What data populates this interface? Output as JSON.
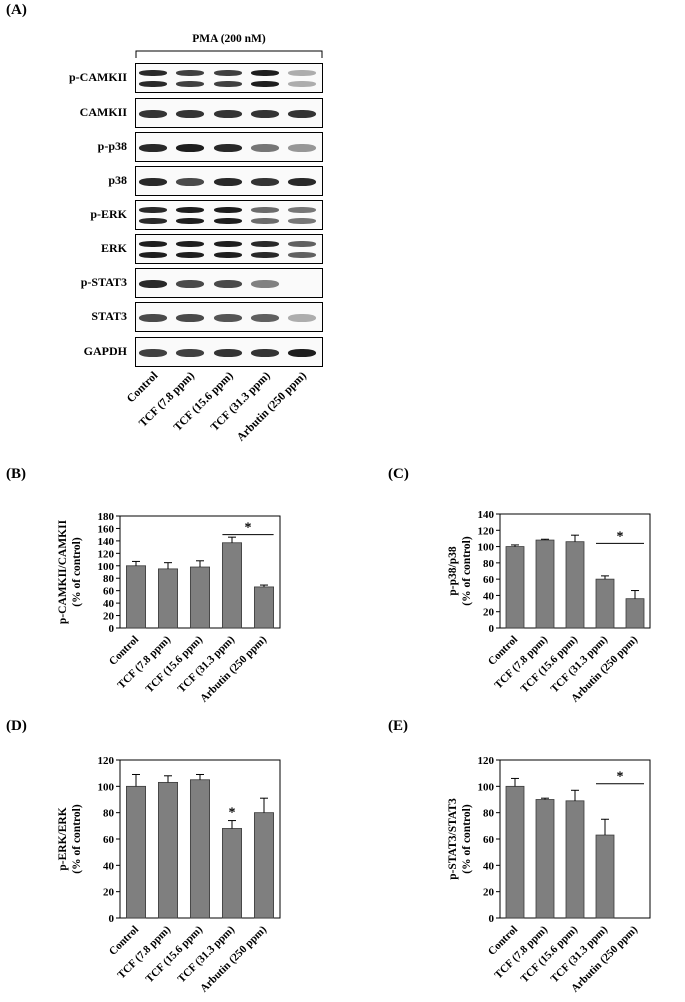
{
  "panels": {
    "A": "(A)",
    "B": "(B)",
    "C": "(C)",
    "D": "(D)",
    "E": "(E)"
  },
  "blot": {
    "treatment_label": "PMA (200 nM)",
    "rows": [
      {
        "label": "p-CAMKII",
        "double": true,
        "intensity": [
          0.95,
          0.85,
          0.85,
          1.0,
          0.35
        ]
      },
      {
        "label": "CAMKII",
        "double": false,
        "intensity": [
          0.9,
          0.9,
          0.9,
          0.9,
          0.9
        ]
      },
      {
        "label": "p-p38",
        "double": false,
        "intensity": [
          0.95,
          1.0,
          0.95,
          0.6,
          0.45
        ]
      },
      {
        "label": "p38",
        "double": false,
        "intensity": [
          0.95,
          0.8,
          0.95,
          0.9,
          0.95
        ]
      },
      {
        "label": "p-ERK",
        "double": true,
        "intensity": [
          0.95,
          1.0,
          1.0,
          0.65,
          0.6
        ]
      },
      {
        "label": "ERK",
        "double": true,
        "intensity": [
          1.0,
          1.0,
          1.0,
          0.95,
          0.7
        ]
      },
      {
        "label": "p-STAT3",
        "double": false,
        "intensity": [
          0.95,
          0.8,
          0.8,
          0.55,
          0.0
        ]
      },
      {
        "label": "STAT3",
        "double": false,
        "intensity": [
          0.8,
          0.8,
          0.75,
          0.7,
          0.35
        ]
      },
      {
        "label": "GAPDH",
        "double": false,
        "intensity": [
          0.85,
          0.85,
          0.9,
          0.9,
          1.0
        ]
      }
    ],
    "lanes": [
      "Control",
      "TCF (7.8 ppm)",
      "TCF (15.6 ppm)",
      "TCF (31.3 ppm)",
      "Arbutin (250 ppm)"
    ]
  },
  "chart_data": [
    {
      "panel": "B",
      "type": "bar",
      "categories": [
        "Control",
        "TCF (7.8 ppm)",
        "TCF (15.6 ppm)",
        "TCF (31.3 ppm)",
        "Arbutin (250 ppm)"
      ],
      "values": [
        100,
        95,
        98,
        137,
        66
      ],
      "errors": [
        7,
        10,
        10,
        9,
        3
      ],
      "ylabel_line1": "p-CAMKII/CAMKII",
      "ylabel_line2": "(% of control)",
      "ylim": [
        0,
        180
      ],
      "yticks": [
        0,
        20,
        40,
        60,
        80,
        100,
        120,
        140,
        160,
        180
      ],
      "significance": {
        "label": "*",
        "from": 3,
        "to": 4,
        "at": 150
      }
    },
    {
      "panel": "C",
      "type": "bar",
      "categories": [
        "Control",
        "TCF (7.8 ppm)",
        "TCF (15.6 ppm)",
        "TCF (31.3 ppm)",
        "Arbutin (250 ppm)"
      ],
      "values": [
        100,
        108,
        106,
        60,
        36
      ],
      "errors": [
        2,
        1,
        8,
        4,
        10
      ],
      "ylabel_line1": "p-p38/p38",
      "ylabel_line2": "(% of control)",
      "ylim": [
        0,
        140
      ],
      "yticks": [
        0,
        20,
        40,
        60,
        80,
        100,
        120,
        140
      ],
      "significance": {
        "label": "*",
        "from": 3,
        "to": 4,
        "at": 104
      }
    },
    {
      "panel": "D",
      "type": "bar",
      "categories": [
        "Control",
        "TCF (7.8 ppm)",
        "TCF (15.6 ppm)",
        "TCF (31.3 ppm)",
        "Arbutin (250 ppm)"
      ],
      "values": [
        100,
        103,
        105,
        68,
        80
      ],
      "errors": [
        9,
        5,
        4,
        6,
        11
      ],
      "ylabel_line1": "p-ERK/ERK",
      "ylabel_line2": "(% of control)",
      "ylim": [
        0,
        120
      ],
      "yticks": [
        0,
        20,
        40,
        60,
        80,
        100,
        120
      ],
      "star_only": {
        "label": "*",
        "index": 3
      }
    },
    {
      "panel": "E",
      "type": "bar",
      "categories": [
        "Control",
        "TCF (7.8 ppm)",
        "TCF (15.6 ppm)",
        "TCF (31.3 ppm)",
        "Arbutin (250 ppm)"
      ],
      "values": [
        100,
        90,
        89,
        63,
        0
      ],
      "errors": [
        6,
        1,
        8,
        12,
        0
      ],
      "ylabel_line1": "p-STAT3/STAT3",
      "ylabel_line2": "(% of control)",
      "ylim": [
        0,
        120
      ],
      "yticks": [
        0,
        20,
        40,
        60,
        80,
        100,
        120
      ],
      "significance": {
        "label": "*",
        "from": 3,
        "to": 4,
        "at": 102
      }
    }
  ]
}
